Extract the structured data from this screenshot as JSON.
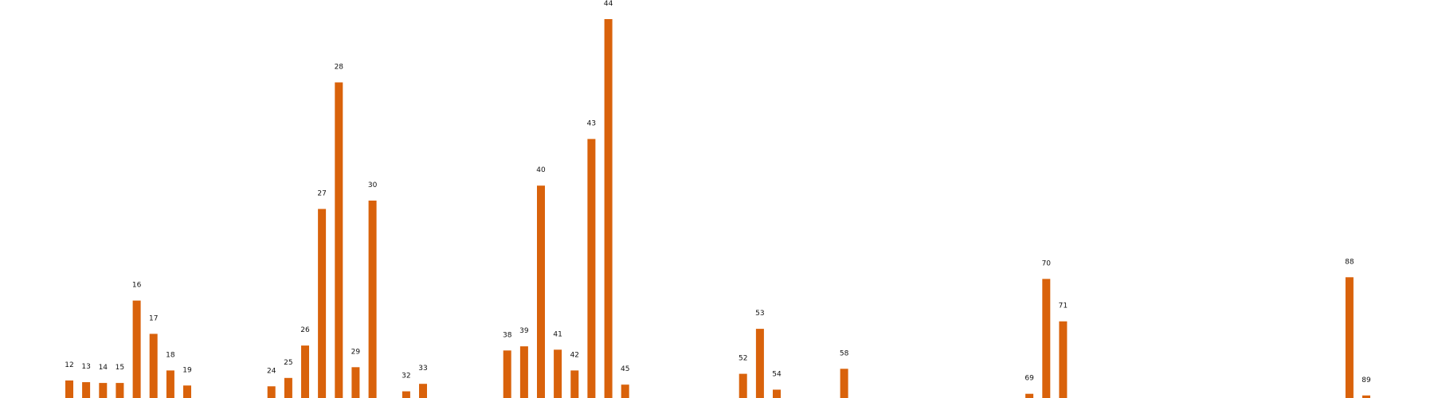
{
  "colors": {
    "bar": "#d9620b",
    "label": "#111111",
    "background": "#ffffff"
  },
  "chart_data": {
    "type": "bar",
    "title": "",
    "xlabel": "",
    "ylabel": "",
    "grid": false,
    "axes_visible": false,
    "x_range": [
      7,
      90
    ],
    "ylim": [
      0,
      225
    ],
    "x": [
      12,
      13,
      14,
      15,
      16,
      17,
      18,
      19,
      24,
      25,
      26,
      27,
      28,
      29,
      30,
      32,
      33,
      38,
      39,
      40,
      41,
      42,
      43,
      44,
      45,
      52,
      53,
      54,
      58,
      69,
      70,
      71,
      88,
      89
    ],
    "values": [
      11,
      10,
      9.5,
      9.5,
      59,
      39,
      17,
      8,
      7.5,
      12.5,
      32,
      114,
      190,
      19,
      119,
      4.5,
      9,
      29,
      31.5,
      128,
      29.5,
      17,
      156,
      228,
      8.5,
      15,
      42,
      5.5,
      18,
      3,
      72,
      46.5,
      73,
      2
    ]
  }
}
